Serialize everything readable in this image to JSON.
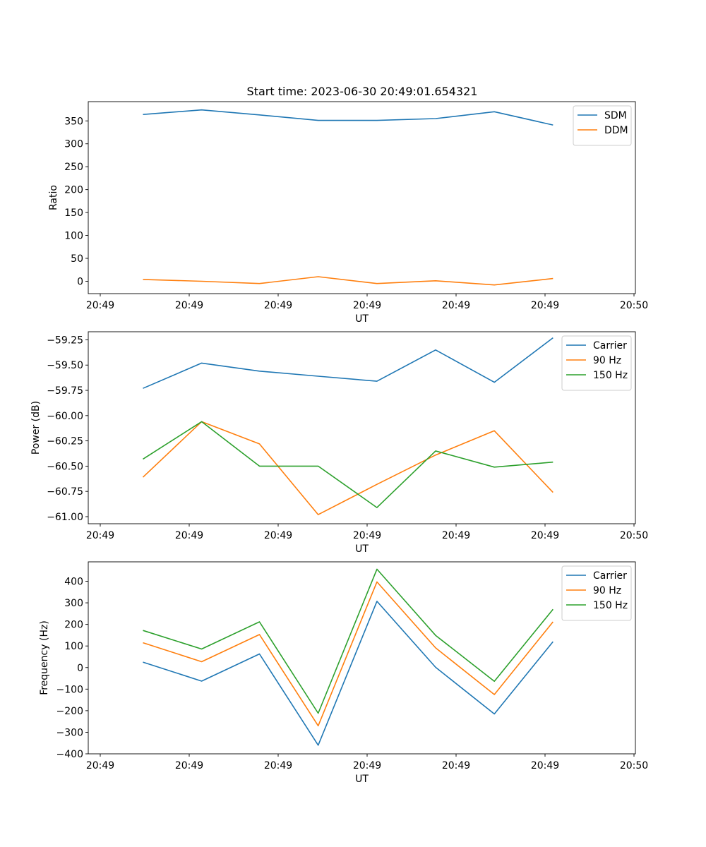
{
  "figure": {
    "title": "Start time: 2023-06-30 20:49:01.654321"
  },
  "chart_data": [
    {
      "type": "line",
      "xlabel": "UT",
      "ylabel": "Ratio",
      "x_tick_labels": [
        "20:49",
        "20:49",
        "20:49",
        "20:49",
        "20:49",
        "20:49",
        "20:50"
      ],
      "xlim": [
        0,
        6
      ],
      "ylim": [
        -27,
        392
      ],
      "y_ticks": [
        0,
        50,
        100,
        150,
        200,
        250,
        300,
        350
      ],
      "y_tick_labels": [
        "0",
        "50",
        "100",
        "150",
        "200",
        "250",
        "300",
        "350"
      ],
      "x": [
        0.48,
        1.14,
        1.79,
        2.45,
        3.11,
        3.77,
        4.43,
        5.09
      ],
      "series": [
        {
          "name": "SDM",
          "color": "#1f77b4",
          "values": [
            364,
            374,
            363,
            351,
            351,
            355,
            370,
            341
          ]
        },
        {
          "name": "DDM",
          "color": "#ff7f0e",
          "values": [
            4,
            0,
            -5,
            10,
            -5,
            1,
            -8,
            6
          ]
        }
      ],
      "legend": "top-right",
      "grid": false
    },
    {
      "type": "line",
      "xlabel": "UT",
      "ylabel": "Power (dB)",
      "x_tick_labels": [
        "20:49",
        "20:49",
        "20:49",
        "20:49",
        "20:49",
        "20:49",
        "20:50"
      ],
      "xlim": [
        0,
        6
      ],
      "ylim": [
        -61.07,
        -59.17
      ],
      "y_ticks": [
        -61.0,
        -60.75,
        -60.5,
        -60.25,
        -60.0,
        -59.75,
        -59.5,
        -59.25
      ],
      "y_tick_labels": [
        "−61.00",
        "−60.75",
        "−60.50",
        "−60.25",
        "−60.00",
        "−59.75",
        "−59.50",
        "−59.25"
      ],
      "x": [
        0.48,
        1.14,
        1.79,
        2.45,
        3.11,
        3.77,
        4.43,
        5.09
      ],
      "series": [
        {
          "name": "Carrier",
          "color": "#1f77b4",
          "values": [
            -59.73,
            -59.48,
            -59.56,
            -59.61,
            -59.66,
            -59.35,
            -59.67,
            -59.23
          ]
        },
        {
          "name": "90 Hz",
          "color": "#ff7f0e",
          "values": [
            -60.61,
            -60.06,
            -60.28,
            -60.98,
            -60.68,
            -60.39,
            -60.15,
            -60.76
          ]
        },
        {
          "name": "150 Hz",
          "color": "#2ca02c",
          "values": [
            -60.43,
            -60.06,
            -60.5,
            -60.5,
            -60.91,
            -60.35,
            -60.51,
            -60.46
          ]
        }
      ],
      "legend": "top-right",
      "grid": false
    },
    {
      "type": "line",
      "xlabel": "UT",
      "ylabel": "Frequency (Hz)",
      "x_tick_labels": [
        "20:49",
        "20:49",
        "20:49",
        "20:49",
        "20:49",
        "20:49",
        "20:50"
      ],
      "xlim": [
        0,
        6
      ],
      "ylim": [
        -400,
        490
      ],
      "y_ticks": [
        -400,
        -300,
        -200,
        -100,
        0,
        100,
        200,
        300,
        400
      ],
      "y_tick_labels": [
        "−400",
        "−300",
        "−200",
        "−100",
        "0",
        "100",
        "200",
        "300",
        "400"
      ],
      "x": [
        0.48,
        1.14,
        1.79,
        2.45,
        3.11,
        3.77,
        4.43,
        5.09
      ],
      "series": [
        {
          "name": "Carrier",
          "color": "#1f77b4",
          "values": [
            25,
            -63,
            63,
            -360,
            307,
            1,
            -215,
            120
          ]
        },
        {
          "name": "90 Hz",
          "color": "#ff7f0e",
          "values": [
            115,
            27,
            153,
            -270,
            397,
            91,
            -125,
            212
          ]
        },
        {
          "name": "150 Hz",
          "color": "#2ca02c",
          "values": [
            172,
            86,
            212,
            -212,
            456,
            149,
            -64,
            270
          ]
        }
      ],
      "legend": "top-right",
      "grid": false
    }
  ]
}
